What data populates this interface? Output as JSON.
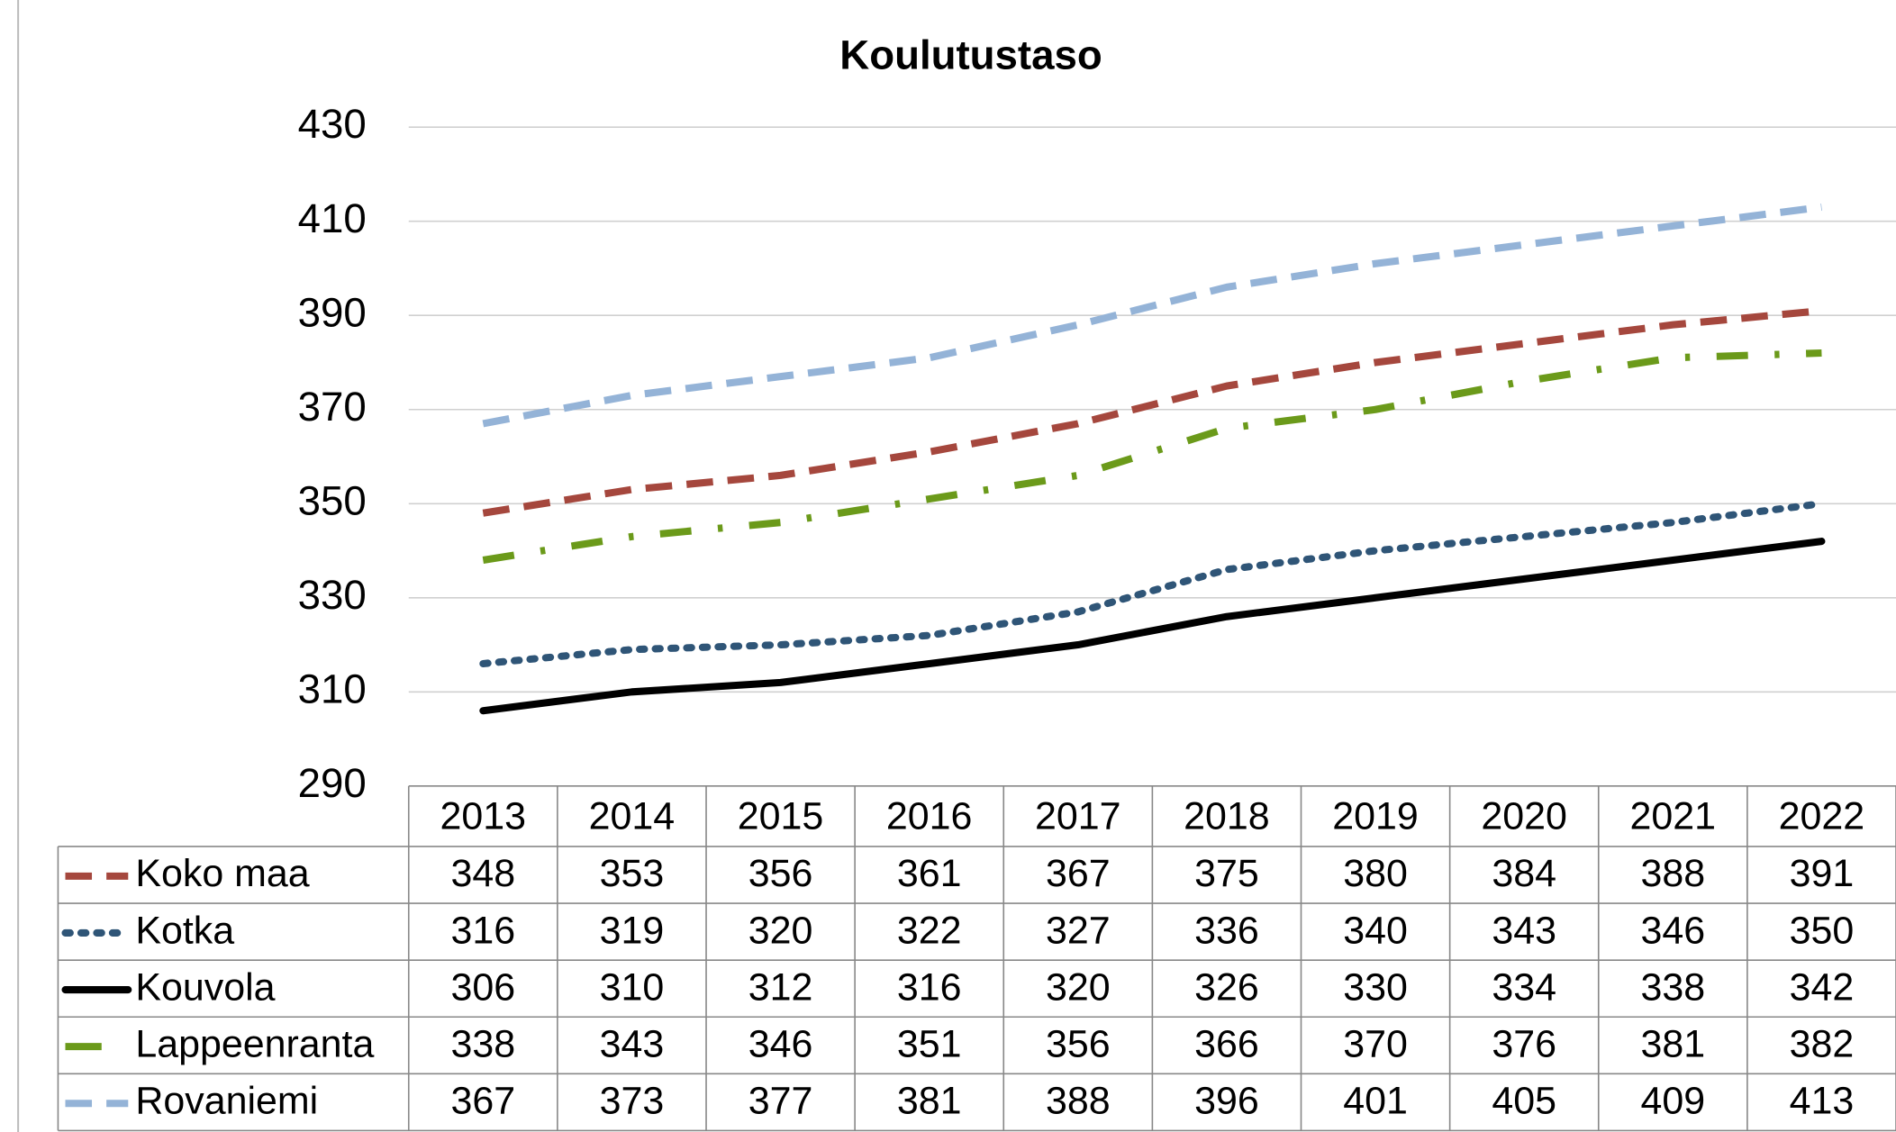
{
  "chart_data": {
    "type": "line",
    "title": "Koulutustaso",
    "categories": [
      "2013",
      "2014",
      "2015",
      "2016",
      "2017",
      "2018",
      "2019",
      "2020",
      "2021",
      "2022"
    ],
    "ylim": [
      290,
      430
    ],
    "yticks": [
      290,
      310,
      330,
      350,
      370,
      390,
      410,
      430
    ],
    "grid": true,
    "series": [
      {
        "name": "Koko maa",
        "color": "#a5473d",
        "dash": "dashed",
        "values": [
          348,
          353,
          356,
          361,
          367,
          375,
          380,
          384,
          388,
          391
        ]
      },
      {
        "name": "Kotka",
        "color": "#2f5577",
        "dash": "dotted",
        "values": [
          316,
          319,
          320,
          322,
          327,
          336,
          340,
          343,
          346,
          350
        ]
      },
      {
        "name": "Kouvola",
        "color": "#000000",
        "dash": "solid",
        "values": [
          306,
          310,
          312,
          316,
          320,
          326,
          330,
          334,
          338,
          342
        ]
      },
      {
        "name": "Lappeenranta",
        "color": "#6b9a1a",
        "dash": "dashdot",
        "values": [
          338,
          343,
          346,
          351,
          356,
          366,
          370,
          376,
          381,
          382
        ]
      },
      {
        "name": "Rovaniemi",
        "color": "#94b3d7",
        "dash": "dashed",
        "values": [
          367,
          373,
          377,
          381,
          388,
          396,
          401,
          405,
          409,
          413
        ]
      }
    ]
  }
}
